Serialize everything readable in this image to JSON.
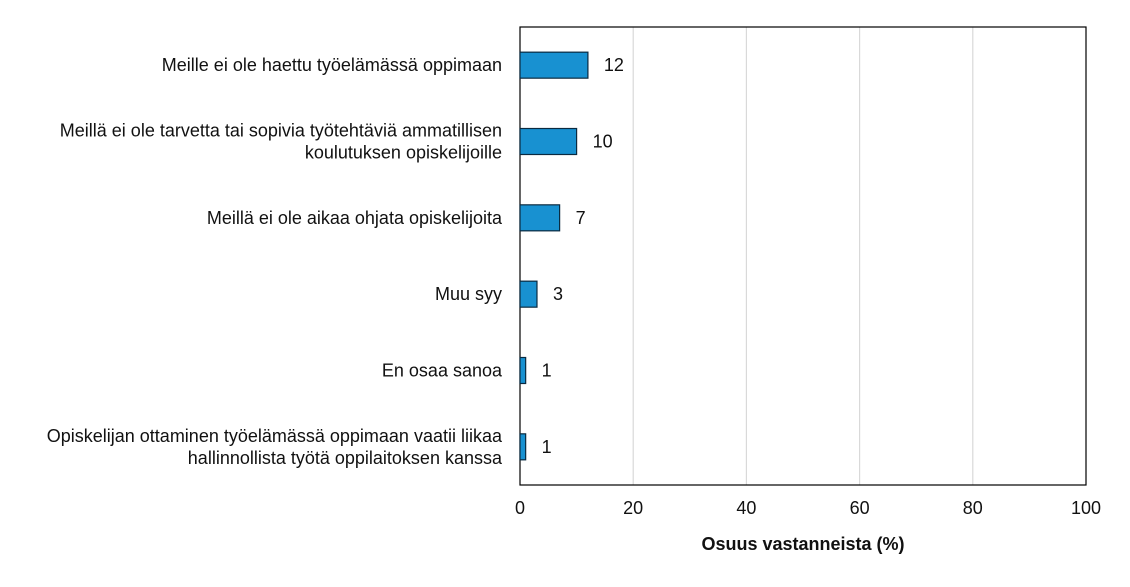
{
  "chart_data": {
    "type": "bar",
    "orientation": "horizontal",
    "categories": [
      [
        "Meille ei ole haettu työelämässä oppimaan"
      ],
      [
        "Meillä ei ole tarvetta tai sopivia työtehtäviä ammatillisen",
        "koulutuksen opiskelijoille"
      ],
      [
        "Meillä ei ole aikaa ohjata opiskelijoita"
      ],
      [
        "Muu syy"
      ],
      [
        "En osaa sanoa"
      ],
      [
        "Opiskelijan ottaminen työelämässä oppimaan vaatii liikaa",
        "hallinnollista työtä oppilaitoksen kanssa"
      ]
    ],
    "values": [
      12,
      10,
      7,
      3,
      1,
      1
    ],
    "data_labels": [
      "12",
      "10",
      "7",
      "3",
      "1",
      "1"
    ],
    "xlabel": "Osuus vastanneista (%)",
    "xlim": [
      0,
      100
    ],
    "xticks": [
      0,
      20,
      40,
      60,
      80,
      100
    ],
    "xtick_labels": [
      "0",
      "20",
      "40",
      "60",
      "80",
      "100"
    ],
    "grid": true,
    "bar_color": "#1891d1",
    "bar_edge_color": "#0a2a40",
    "grid_color": "#d9d9d9"
  }
}
